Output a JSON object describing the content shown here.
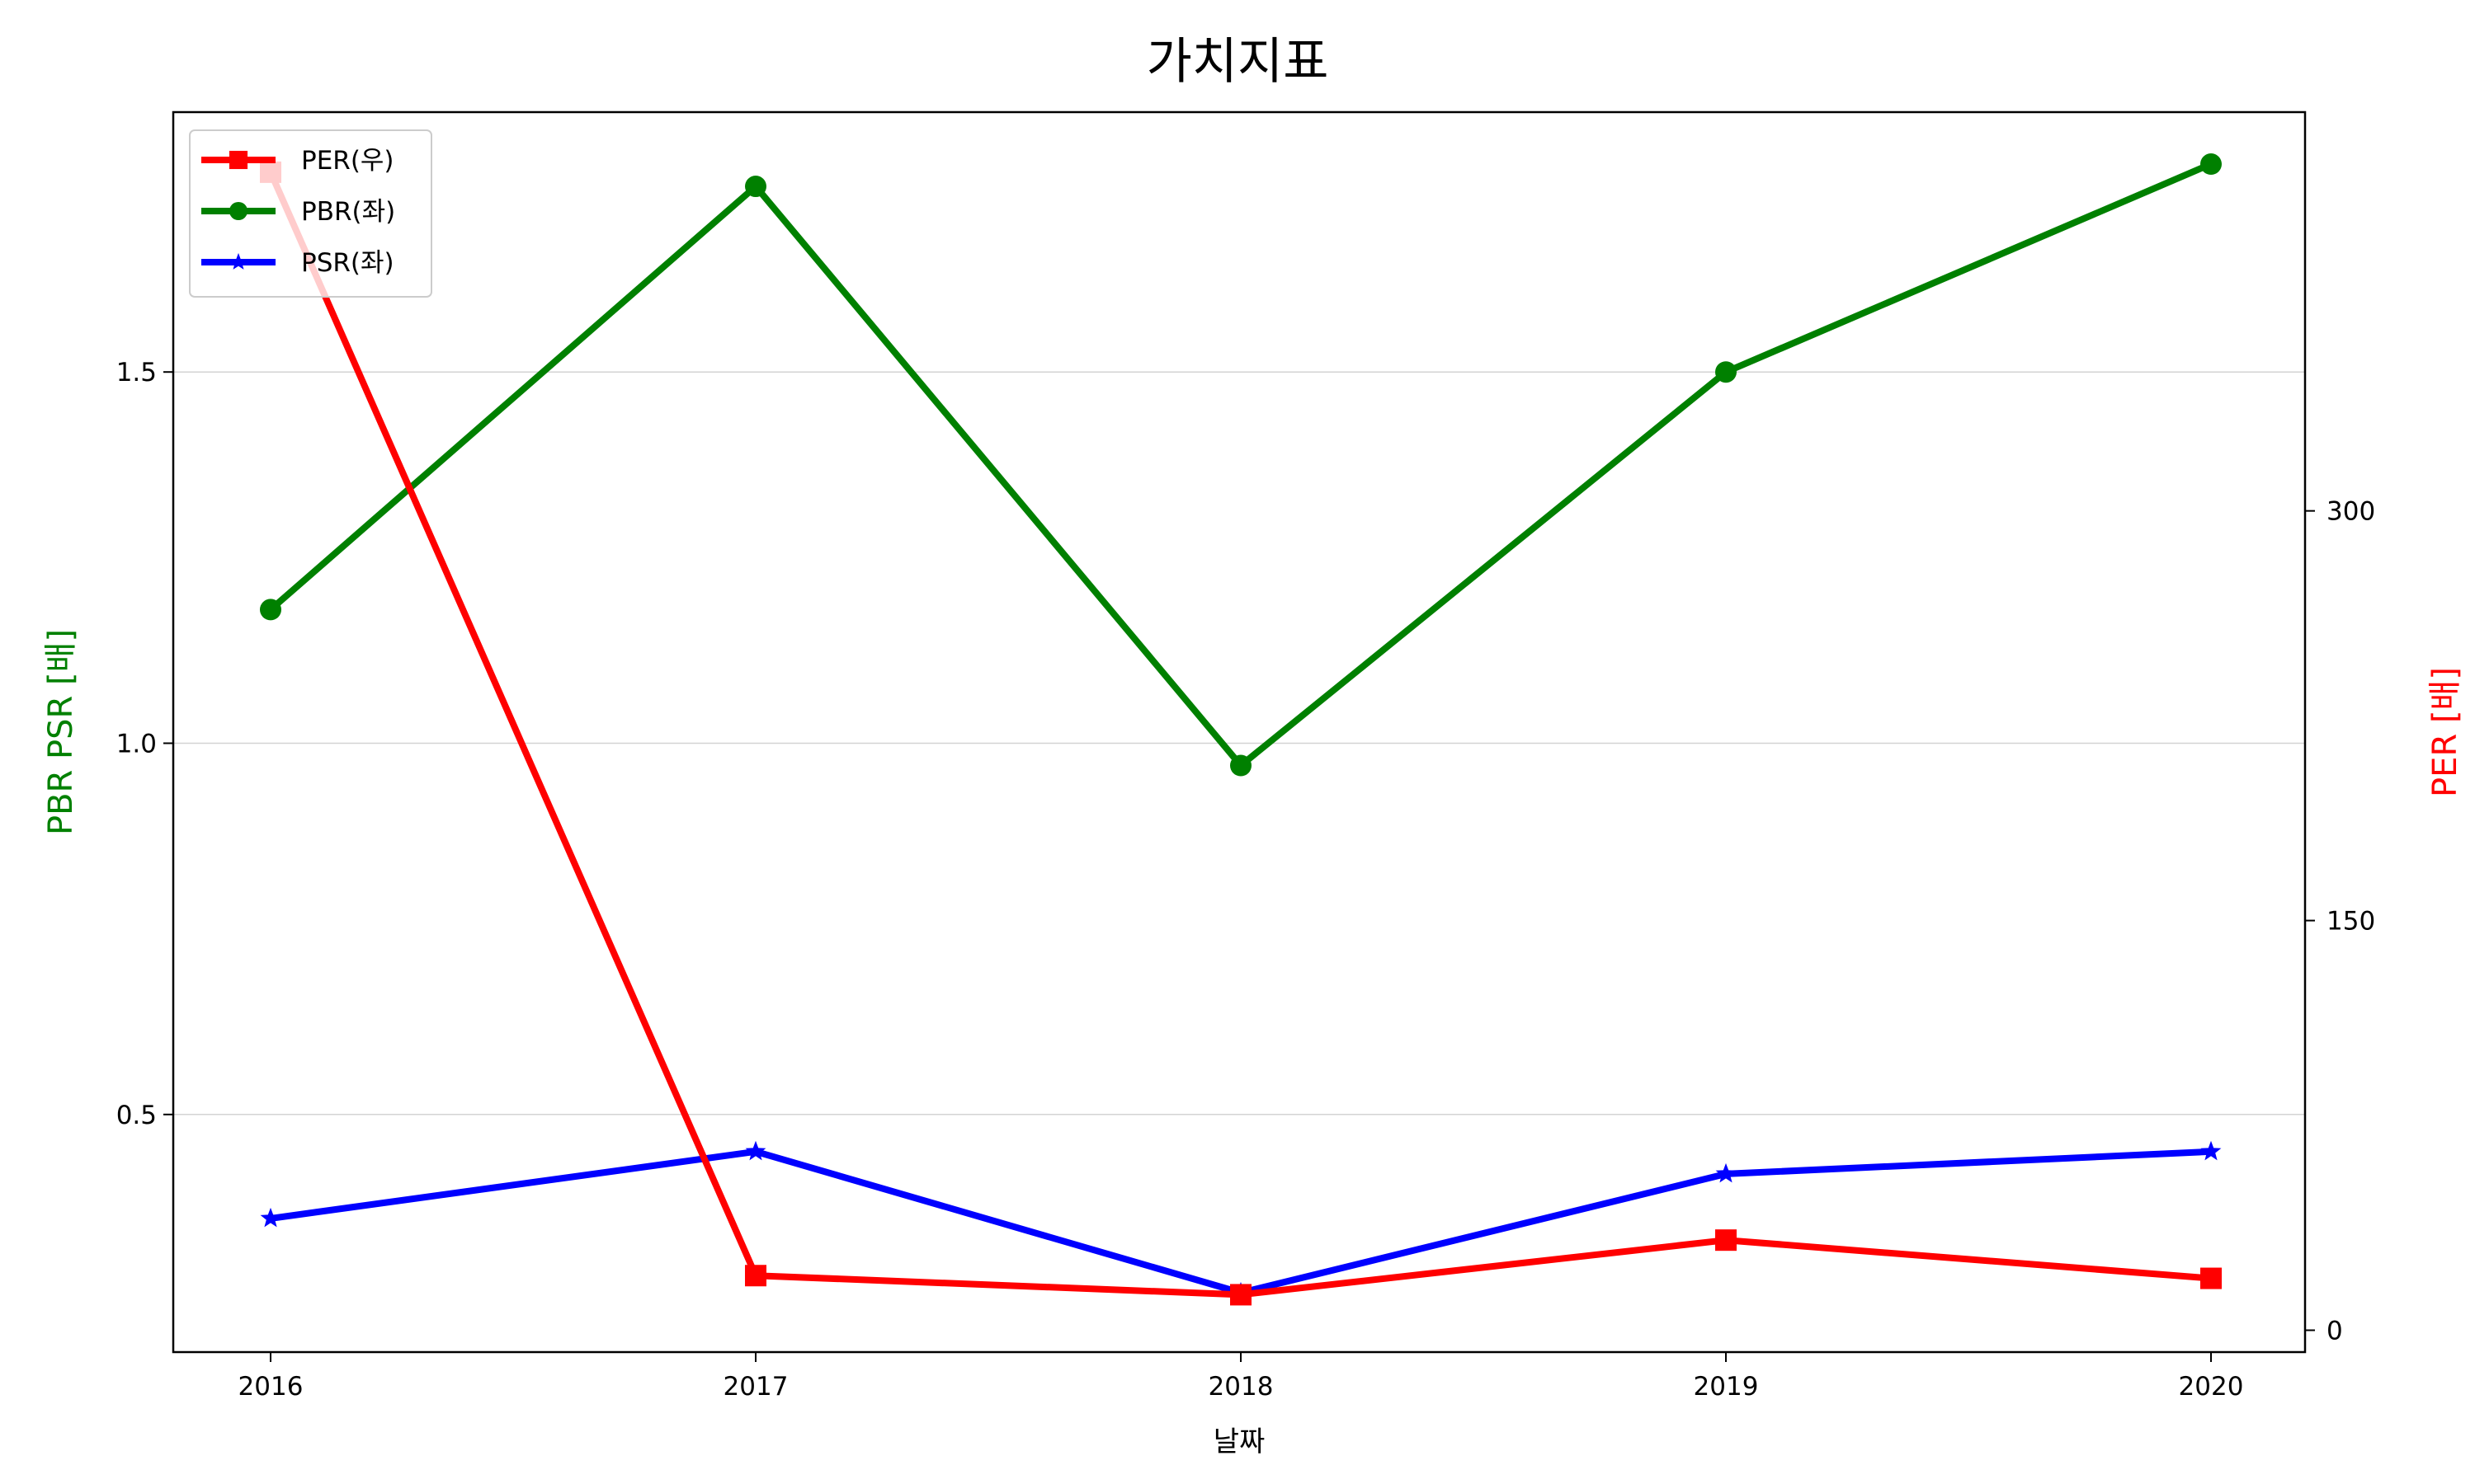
{
  "chart_data": {
    "type": "line",
    "title": "가치지표",
    "xlabel": "날짜",
    "ylabel_left": "PBR PSR [배]",
    "ylabel_right": "PER [배]",
    "categories": [
      "2016",
      "2017",
      "2018",
      "2019",
      "2020"
    ],
    "left_axis": {
      "ylim": [
        0.18,
        1.85
      ],
      "ticks": [
        0.5,
        1.0,
        1.5
      ],
      "tick_labels": [
        "0.5",
        "1.0",
        "1.5"
      ],
      "grid": true
    },
    "right_axis": {
      "ylim": [
        -8,
        446
      ],
      "ticks": [
        0,
        150,
        300
      ],
      "tick_labels": [
        "0",
        "150",
        "300"
      ]
    },
    "legend_position": "upper left",
    "series": [
      {
        "name": "PER(우)",
        "axis": "right",
        "color": "#ff0000",
        "marker": "square",
        "values": [
          424,
          20,
          13,
          33,
          19
        ]
      },
      {
        "name": "PBR(좌)",
        "axis": "left",
        "color": "#008000",
        "marker": "circle",
        "values": [
          1.18,
          1.75,
          0.97,
          1.5,
          1.78
        ]
      },
      {
        "name": "PSR(좌)",
        "axis": "left",
        "color": "#0000ff",
        "marker": "star",
        "values": [
          0.36,
          0.45,
          0.26,
          0.42,
          0.45
        ]
      }
    ]
  }
}
